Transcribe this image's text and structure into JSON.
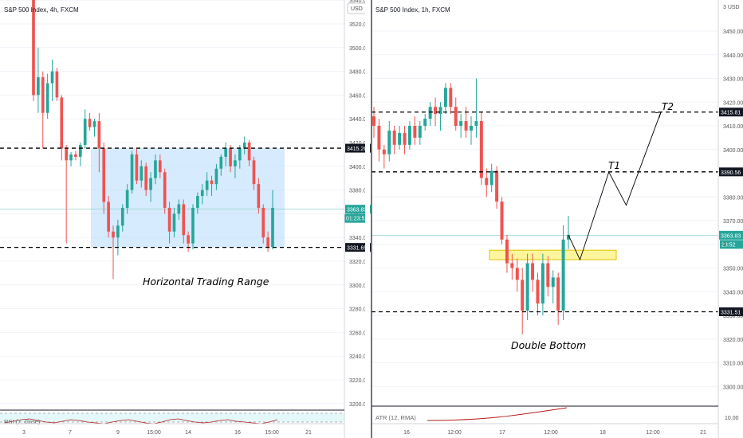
{
  "chart_data": [
    {
      "type": "candlestick",
      "title": "S&P 500 Index, 4h, FXCM",
      "currency": "USD",
      "y_ticks": [
        3200,
        3220,
        3240,
        3260,
        3280,
        3300,
        3320,
        3340,
        3360,
        3380,
        3400,
        3420,
        3440,
        3460,
        3480,
        3500,
        3520,
        3540
      ],
      "x_ticks": [
        "3",
        "7",
        "9",
        "15:00",
        "14",
        "16",
        "15:00",
        "21"
      ],
      "levels": [
        {
          "label": "3415.26",
          "value": 3415.26
        },
        {
          "label": "3331.65",
          "value": 3331.65
        }
      ],
      "last_price": {
        "label": "3363.83",
        "value": 3363.83
      },
      "countdown": "01:23:52",
      "range_box": {
        "low": 3331.65,
        "high": 3415.26
      },
      "annotation": "Horizontal Trading Range",
      "indicator": "RSI (7, close)",
      "candles": [
        [
          3545,
          3548,
          3455,
          3460
        ],
        [
          3460,
          3500,
          3445,
          3475
        ],
        [
          3475,
          3480,
          3415,
          3445
        ],
        [
          3445,
          3478,
          3440,
          3470
        ],
        [
          3470,
          3490,
          3455,
          3480
        ],
        [
          3480,
          3483,
          3455,
          3458
        ],
        [
          3458,
          3460,
          3405,
          3415
        ],
        [
          3415,
          3418,
          3335,
          3405
        ],
        [
          3405,
          3412,
          3400,
          3410
        ],
        [
          3410,
          3413,
          3405,
          3408
        ],
        [
          3408,
          3420,
          3400,
          3418
        ],
        [
          3418,
          3448,
          3415,
          3440
        ],
        [
          3440,
          3445,
          3430,
          3433
        ],
        [
          3433,
          3440,
          3425,
          3438
        ],
        [
          3438,
          3445,
          3395,
          3415
        ],
        [
          3415,
          3420,
          3360,
          3370
        ],
        [
          3370,
          3375,
          3340,
          3345
        ],
        [
          3345,
          3350,
          3305,
          3340
        ],
        [
          3340,
          3355,
          3325,
          3350
        ],
        [
          3350,
          3368,
          3345,
          3365
        ],
        [
          3365,
          3385,
          3360,
          3380
        ],
        [
          3380,
          3413,
          3377,
          3410
        ],
        [
          3410,
          3415,
          3385,
          3388
        ],
        [
          3388,
          3405,
          3382,
          3400
        ],
        [
          3400,
          3403,
          3375,
          3380
        ],
        [
          3380,
          3395,
          3370,
          3390
        ],
        [
          3390,
          3410,
          3385,
          3405
        ],
        [
          3405,
          3410,
          3390,
          3395
        ],
        [
          3395,
          3398,
          3360,
          3365
        ],
        [
          3365,
          3370,
          3335,
          3345
        ],
        [
          3345,
          3365,
          3340,
          3360
        ],
        [
          3360,
          3372,
          3355,
          3368
        ],
        [
          3368,
          3372,
          3335,
          3342
        ],
        [
          3342,
          3345,
          3328,
          3335
        ],
        [
          3335,
          3368,
          3330,
          3365
        ],
        [
          3365,
          3378,
          3360,
          3375
        ],
        [
          3375,
          3385,
          3368,
          3380
        ],
        [
          3380,
          3395,
          3375,
          3388
        ],
        [
          3388,
          3392,
          3375,
          3385
        ],
        [
          3385,
          3402,
          3380,
          3398
        ],
        [
          3398,
          3410,
          3392,
          3408
        ],
        [
          3408,
          3420,
          3400,
          3415
        ],
        [
          3415,
          3418,
          3395,
          3400
        ],
        [
          3400,
          3410,
          3390,
          3405
        ],
        [
          3405,
          3418,
          3398,
          3415
        ],
        [
          3415,
          3425,
          3410,
          3420
        ],
        [
          3420,
          3422,
          3400,
          3405
        ],
        [
          3405,
          3408,
          3380,
          3385
        ],
        [
          3385,
          3390,
          3360,
          3365
        ],
        [
          3365,
          3368,
          3335,
          3340
        ],
        [
          3340,
          3345,
          3328,
          3332
        ],
        [
          3332,
          3380,
          3330,
          3365
        ]
      ]
    },
    {
      "type": "candlestick",
      "title": "S&P 500 Index, 1h, FXCM",
      "currency": "USD",
      "y_ticks": [
        3300,
        3310,
        3320,
        3330,
        3340,
        3350,
        3360,
        3370,
        3380,
        3390,
        3400,
        3410,
        3420,
        3430,
        3440,
        3450
      ],
      "x_ticks": [
        "16",
        "12:00",
        "17",
        "12:00",
        "18",
        "12:00",
        "21"
      ],
      "levels": [
        {
          "label": "3415.81",
          "value": 3415.81
        },
        {
          "label": "3390.56",
          "value": 3390.56
        },
        {
          "label": "3331.51",
          "value": 3331.51
        }
      ],
      "last_price": {
        "label": "3363.83",
        "value": 3363.83
      },
      "countdown": "23:52",
      "partial_axis_label": "3",
      "top_label": "3 USD",
      "zone": {
        "low": 3353.5,
        "high": 3357.5
      },
      "annotations": {
        "t1": "T1",
        "t2": "T2",
        "pattern": "Double Bottom"
      },
      "projection": [
        [
          3363.83,
          0
        ],
        [
          3353.5,
          2
        ],
        [
          3390.5,
          7
        ],
        [
          3376.5,
          10
        ],
        [
          3415.81,
          16
        ]
      ],
      "indicator": "ATR (12, RMA)",
      "indicator_value": "10.00",
      "candles": [
        [
          3414,
          3418,
          3405,
          3410
        ],
        [
          3410,
          3413,
          3395,
          3400
        ],
        [
          3400,
          3402,
          3392,
          3398
        ],
        [
          3398,
          3412,
          3395,
          3408
        ],
        [
          3408,
          3410,
          3398,
          3402
        ],
        [
          3402,
          3410,
          3400,
          3407
        ],
        [
          3407,
          3410,
          3398,
          3402
        ],
        [
          3402,
          3412,
          3400,
          3410
        ],
        [
          3410,
          3414,
          3402,
          3405
        ],
        [
          3405,
          3412,
          3402,
          3410
        ],
        [
          3410,
          3415,
          3408,
          3413
        ],
        [
          3413,
          3420,
          3410,
          3418
        ],
        [
          3418,
          3422,
          3410,
          3415
        ],
        [
          3415,
          3420,
          3408,
          3418
        ],
        [
          3418,
          3428,
          3415,
          3426
        ],
        [
          3426,
          3428,
          3415,
          3418
        ],
        [
          3418,
          3422,
          3408,
          3410
        ],
        [
          3410,
          3415,
          3405,
          3412
        ],
        [
          3412,
          3418,
          3405,
          3408
        ],
        [
          3408,
          3414,
          3402,
          3410
        ],
        [
          3410,
          3430,
          3405,
          3412
        ],
        [
          3412,
          3416,
          3385,
          3388
        ],
        [
          3388,
          3392,
          3380,
          3385
        ],
        [
          3385,
          3394,
          3382,
          3391
        ],
        [
          3391,
          3393,
          3375,
          3378
        ],
        [
          3378,
          3380,
          3360,
          3362
        ],
        [
          3362,
          3364,
          3348,
          3352
        ],
        [
          3352,
          3356,
          3345,
          3350
        ],
        [
          3350,
          3354,
          3340,
          3345
        ],
        [
          3345,
          3350,
          3322,
          3332
        ],
        [
          3332,
          3356,
          3328,
          3352
        ],
        [
          3352,
          3356,
          3340,
          3345
        ],
        [
          3345,
          3348,
          3330,
          3335
        ],
        [
          3335,
          3356,
          3330,
          3352
        ],
        [
          3352,
          3355,
          3338,
          3342
        ],
        [
          3342,
          3349,
          3335,
          3346
        ],
        [
          3346,
          3348,
          3326,
          3332
        ],
        [
          3332,
          3368,
          3328,
          3362
        ],
        [
          3362,
          3372,
          3358,
          3364
        ]
      ]
    }
  ]
}
